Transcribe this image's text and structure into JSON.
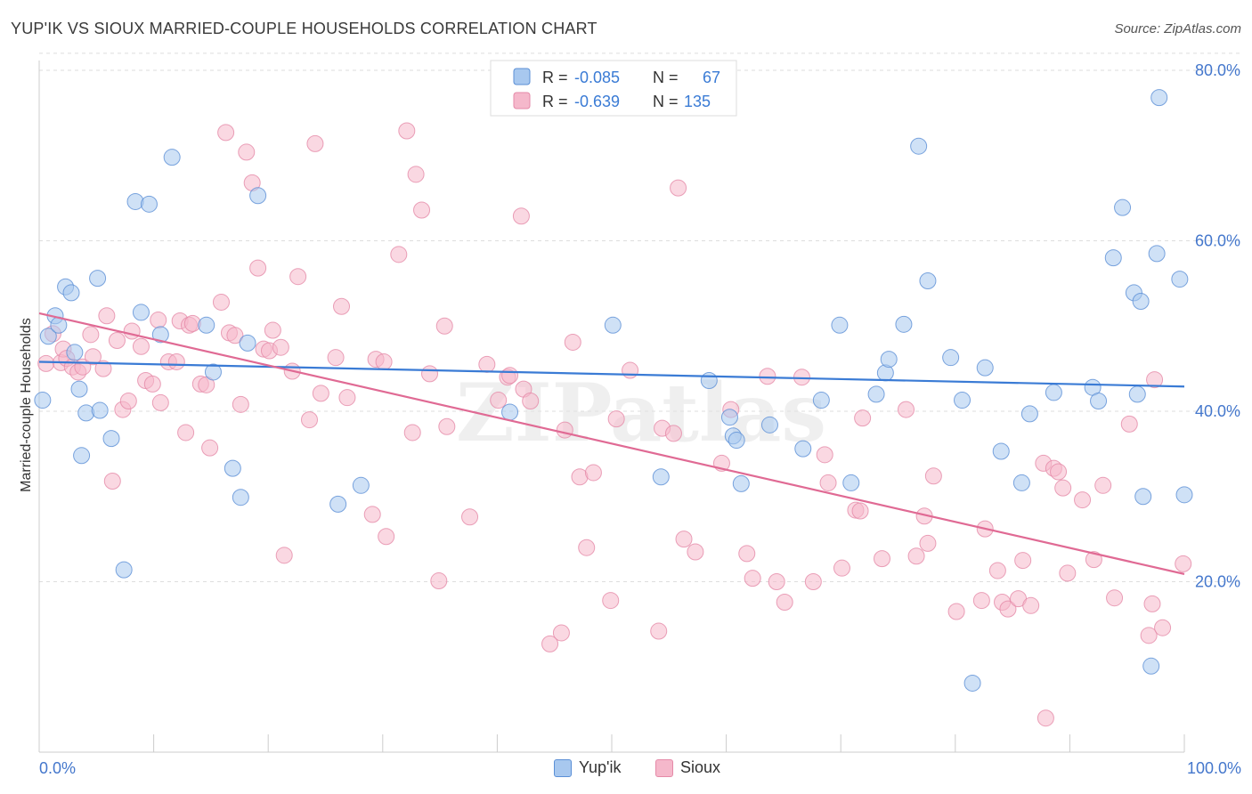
{
  "title": "YUP'IK VS SIOUX MARRIED-COUPLE HOUSEHOLDS CORRELATION CHART",
  "source": "Source: ZipAtlas.com",
  "colors": {
    "yupik_fill": "#a8c8ef",
    "yupik_stroke": "#5b8fd6",
    "yupik_line": "#3a7bd5",
    "sioux_fill": "#f5b8cb",
    "sioux_stroke": "#e58aa8",
    "sioux_line": "#e06a94",
    "tick_label": "#4477cc",
    "grid": "#dddddd"
  },
  "legend_top": {
    "rows": [
      {
        "r_label": "R =",
        "r_value": "-0.085",
        "n_label": "N =",
        "n_value": "67"
      },
      {
        "r_label": "R =",
        "r_value": "-0.639",
        "n_label": "N =",
        "n_value": "135"
      }
    ]
  },
  "legend_bottom": {
    "yupik": "Yup'ik",
    "sioux": "Sioux"
  },
  "chart_data": {
    "type": "scatter",
    "title": "YUP'IK VS SIOUX MARRIED-COUPLE HOUSEHOLDS CORRELATION CHART",
    "xlabel": "",
    "ylabel": "Married-couple Households",
    "xlim": [
      0,
      100
    ],
    "ylim": [
      0,
      82
    ],
    "x_tick_labels": {
      "left": "0.0%",
      "right": "100.0%"
    },
    "y_ticks": [
      {
        "value": 20,
        "label": "20.0%"
      },
      {
        "value": 40,
        "label": "40.0%"
      },
      {
        "value": 60,
        "label": "60.0%"
      },
      {
        "value": 80,
        "label": "80.0%"
      }
    ],
    "watermark": "ZIPatlas",
    "series": [
      {
        "name": "Yup'ik",
        "r": -0.085,
        "n": 67,
        "trend": {
          "x": [
            0,
            100
          ],
          "y": [
            45.8,
            42.9
          ]
        },
        "points": [
          [
            0.3,
            41.3
          ],
          [
            0.8,
            48.8
          ],
          [
            1.4,
            51.2
          ],
          [
            1.7,
            50.1
          ],
          [
            2.3,
            54.6
          ],
          [
            2.8,
            53.9
          ],
          [
            3.1,
            46.9
          ],
          [
            3.5,
            42.6
          ],
          [
            3.7,
            34.8
          ],
          [
            4.1,
            39.8
          ],
          [
            5.1,
            55.6
          ],
          [
            5.3,
            40.1
          ],
          [
            6.3,
            36.8
          ],
          [
            7.4,
            21.4
          ],
          [
            8.4,
            64.6
          ],
          [
            8.9,
            51.6
          ],
          [
            9.6,
            64.3
          ],
          [
            10.6,
            49.0
          ],
          [
            11.6,
            69.8
          ],
          [
            14.6,
            50.1
          ],
          [
            15.2,
            44.6
          ],
          [
            16.9,
            33.3
          ],
          [
            17.6,
            29.9
          ],
          [
            18.2,
            48.0
          ],
          [
            19.1,
            65.3
          ],
          [
            26.1,
            29.1
          ],
          [
            28.1,
            31.3
          ],
          [
            41.1,
            39.9
          ],
          [
            50.1,
            50.1
          ],
          [
            54.3,
            32.3
          ],
          [
            58.5,
            43.6
          ],
          [
            60.3,
            39.3
          ],
          [
            60.6,
            37.1
          ],
          [
            60.9,
            36.6
          ],
          [
            61.3,
            31.5
          ],
          [
            63.8,
            38.4
          ],
          [
            66.7,
            35.6
          ],
          [
            68.3,
            41.3
          ],
          [
            69.9,
            50.1
          ],
          [
            70.9,
            31.6
          ],
          [
            73.1,
            42.0
          ],
          [
            73.9,
            44.5
          ],
          [
            74.2,
            46.1
          ],
          [
            75.5,
            50.2
          ],
          [
            76.8,
            71.1
          ],
          [
            77.6,
            55.3
          ],
          [
            79.6,
            46.3
          ],
          [
            80.6,
            41.3
          ],
          [
            81.5,
            8.1
          ],
          [
            82.6,
            45.1
          ],
          [
            84.0,
            35.3
          ],
          [
            85.8,
            31.6
          ],
          [
            86.5,
            39.7
          ],
          [
            88.6,
            42.2
          ],
          [
            92.0,
            42.8
          ],
          [
            92.5,
            41.2
          ],
          [
            93.8,
            58.0
          ],
          [
            94.6,
            63.9
          ],
          [
            95.6,
            53.9
          ],
          [
            95.9,
            42.0
          ],
          [
            96.2,
            52.9
          ],
          [
            96.4,
            30.0
          ],
          [
            97.1,
            10.1
          ],
          [
            97.6,
            58.5
          ],
          [
            97.8,
            76.8
          ],
          [
            99.6,
            55.5
          ],
          [
            100.0,
            30.2
          ]
        ]
      },
      {
        "name": "Sioux",
        "r": -0.639,
        "n": 135,
        "trend": {
          "x": [
            0,
            100
          ],
          "y": [
            51.5,
            20.9
          ]
        },
        "points": [
          [
            0.6,
            45.6
          ],
          [
            1.2,
            49.1
          ],
          [
            1.9,
            45.7
          ],
          [
            2.1,
            47.3
          ],
          [
            2.4,
            46.2
          ],
          [
            2.9,
            45.2
          ],
          [
            3.4,
            44.6
          ],
          [
            3.8,
            45.2
          ],
          [
            4.5,
            49.0
          ],
          [
            4.7,
            46.4
          ],
          [
            5.6,
            45.0
          ],
          [
            5.9,
            51.2
          ],
          [
            6.4,
            31.8
          ],
          [
            6.8,
            48.3
          ],
          [
            7.3,
            40.2
          ],
          [
            7.8,
            41.2
          ],
          [
            8.1,
            49.4
          ],
          [
            8.9,
            47.6
          ],
          [
            9.3,
            43.6
          ],
          [
            9.9,
            43.2
          ],
          [
            10.4,
            50.7
          ],
          [
            10.6,
            41.0
          ],
          [
            11.3,
            45.8
          ],
          [
            12.0,
            45.8
          ],
          [
            12.3,
            50.6
          ],
          [
            12.8,
            37.5
          ],
          [
            13.1,
            50.1
          ],
          [
            13.4,
            50.3
          ],
          [
            14.1,
            43.2
          ],
          [
            14.6,
            43.1
          ],
          [
            14.9,
            35.7
          ],
          [
            15.9,
            52.8
          ],
          [
            16.3,
            72.7
          ],
          [
            16.6,
            49.2
          ],
          [
            17.1,
            48.9
          ],
          [
            17.6,
            40.8
          ],
          [
            18.1,
            70.4
          ],
          [
            18.6,
            66.8
          ],
          [
            19.1,
            56.8
          ],
          [
            19.6,
            47.3
          ],
          [
            20.1,
            47.1
          ],
          [
            20.4,
            49.5
          ],
          [
            21.1,
            47.5
          ],
          [
            21.4,
            23.1
          ],
          [
            22.6,
            55.8
          ],
          [
            22.1,
            44.7
          ],
          [
            23.6,
            39.0
          ],
          [
            24.1,
            71.4
          ],
          [
            24.6,
            42.1
          ],
          [
            25.9,
            46.3
          ],
          [
            26.4,
            52.3
          ],
          [
            26.9,
            41.6
          ],
          [
            29.1,
            27.9
          ],
          [
            29.4,
            46.1
          ],
          [
            30.1,
            45.8
          ],
          [
            30.3,
            25.3
          ],
          [
            31.4,
            58.4
          ],
          [
            32.1,
            72.9
          ],
          [
            32.6,
            37.5
          ],
          [
            32.9,
            67.8
          ],
          [
            33.4,
            63.6
          ],
          [
            34.1,
            44.4
          ],
          [
            34.9,
            20.1
          ],
          [
            35.4,
            50.0
          ],
          [
            35.6,
            38.2
          ],
          [
            37.6,
            27.6
          ],
          [
            39.1,
            45.5
          ],
          [
            40.1,
            41.3
          ],
          [
            40.9,
            44.0
          ],
          [
            41.1,
            44.2
          ],
          [
            42.1,
            62.9
          ],
          [
            42.3,
            42.6
          ],
          [
            42.9,
            41.2
          ],
          [
            44.6,
            12.7
          ],
          [
            45.6,
            14.0
          ],
          [
            45.9,
            37.8
          ],
          [
            46.6,
            48.1
          ],
          [
            47.2,
            32.3
          ],
          [
            47.8,
            24.0
          ],
          [
            48.4,
            32.8
          ],
          [
            49.9,
            17.8
          ],
          [
            50.4,
            39.1
          ],
          [
            51.6,
            44.8
          ],
          [
            54.1,
            14.2
          ],
          [
            54.4,
            38.0
          ],
          [
            55.4,
            37.4
          ],
          [
            55.8,
            66.2
          ],
          [
            56.3,
            25.0
          ],
          [
            57.3,
            23.5
          ],
          [
            59.6,
            33.9
          ],
          [
            60.4,
            40.2
          ],
          [
            61.8,
            23.3
          ],
          [
            62.3,
            20.4
          ],
          [
            63.6,
            44.1
          ],
          [
            64.4,
            20.0
          ],
          [
            65.1,
            17.6
          ],
          [
            66.6,
            44.0
          ],
          [
            67.6,
            20.0
          ],
          [
            68.6,
            34.9
          ],
          [
            68.9,
            31.6
          ],
          [
            70.1,
            21.6
          ],
          [
            71.3,
            28.4
          ],
          [
            71.7,
            28.3
          ],
          [
            71.9,
            39.2
          ],
          [
            73.6,
            22.7
          ],
          [
            75.7,
            40.2
          ],
          [
            76.6,
            23.0
          ],
          [
            77.3,
            27.7
          ],
          [
            77.6,
            24.5
          ],
          [
            78.1,
            32.4
          ],
          [
            80.1,
            16.5
          ],
          [
            82.6,
            26.2
          ],
          [
            82.3,
            17.8
          ],
          [
            83.7,
            21.3
          ],
          [
            84.1,
            17.6
          ],
          [
            84.6,
            16.8
          ],
          [
            85.5,
            18.0
          ],
          [
            85.9,
            22.5
          ],
          [
            86.6,
            17.2
          ],
          [
            87.9,
            4.0
          ],
          [
            87.7,
            33.9
          ],
          [
            88.6,
            33.3
          ],
          [
            89.0,
            32.9
          ],
          [
            89.4,
            31.0
          ],
          [
            89.8,
            21.0
          ],
          [
            91.1,
            29.6
          ],
          [
            92.1,
            22.6
          ],
          [
            92.9,
            31.3
          ],
          [
            93.9,
            18.1
          ],
          [
            95.2,
            38.5
          ],
          [
            96.9,
            13.7
          ],
          [
            97.2,
            17.4
          ],
          [
            97.4,
            43.7
          ],
          [
            98.1,
            14.6
          ],
          [
            99.9,
            22.1
          ]
        ]
      }
    ]
  }
}
